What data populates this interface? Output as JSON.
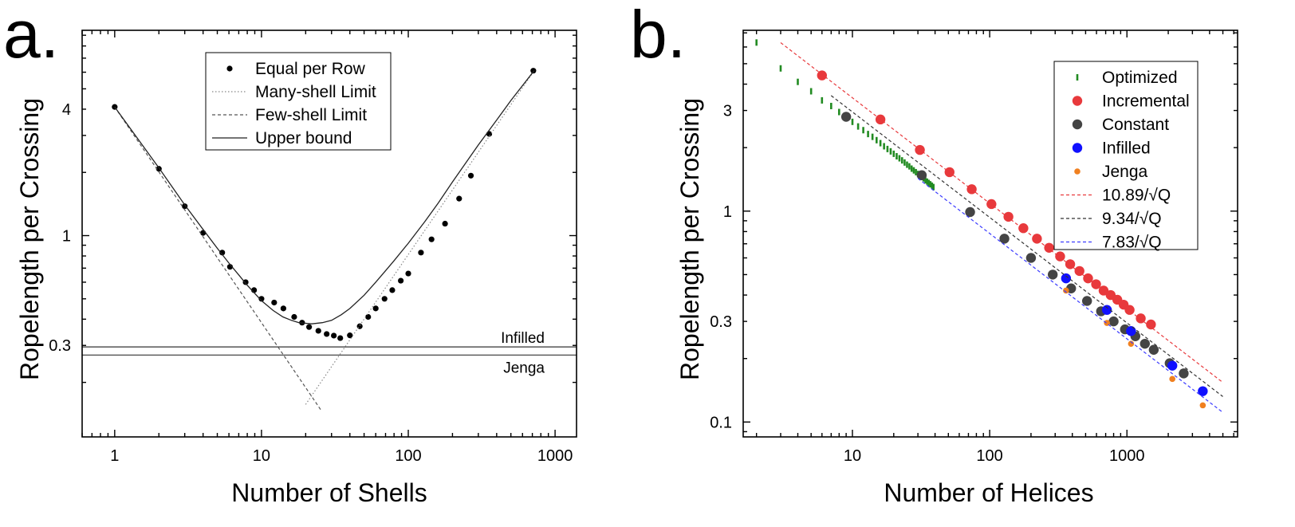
{
  "panels": {
    "a": {
      "label": "a."
    },
    "b": {
      "label": "b."
    }
  },
  "chart_data": [
    {
      "type": "scatter",
      "panel": "a.",
      "xlabel": "Number of Shells",
      "ylabel": "Ropelength per Crossing",
      "xscale": "log",
      "yscale": "log",
      "xlim": [
        0.6,
        1400
      ],
      "ylim": [
        0.11,
        9.5
      ],
      "xticks": [
        {
          "v": 1,
          "label": "1"
        },
        {
          "v": 10,
          "label": "10"
        },
        {
          "v": 100,
          "label": "100"
        },
        {
          "v": 1000,
          "label": "1000"
        }
      ],
      "yticks": [
        {
          "v": 0.3,
          "label": "0.3"
        },
        {
          "v": 1,
          "label": "1"
        },
        {
          "v": 4,
          "label": "4"
        }
      ],
      "legend_position": "top-center",
      "series": [
        {
          "name": "Equal per Row",
          "style": "markers",
          "color": "#000000",
          "points": [
            [
              1,
              4.1
            ],
            [
              2,
              2.08
            ],
            [
              3,
              1.38
            ],
            [
              4,
              1.03
            ],
            [
              5.4,
              0.83
            ],
            [
              6.1,
              0.71
            ],
            [
              7.8,
              0.6
            ],
            [
              8.9,
              0.55
            ],
            [
              10,
              0.5
            ],
            [
              12.2,
              0.48
            ],
            [
              14.1,
              0.45
            ],
            [
              16.7,
              0.41
            ],
            [
              18.9,
              0.385
            ],
            [
              21.1,
              0.367
            ],
            [
              24.4,
              0.352
            ],
            [
              27.8,
              0.34
            ],
            [
              31.1,
              0.334
            ],
            [
              34.4,
              0.325
            ],
            [
              40,
              0.335
            ],
            [
              46.7,
              0.37
            ],
            [
              53.3,
              0.41
            ],
            [
              60,
              0.45
            ],
            [
              68.9,
              0.5
            ],
            [
              77.8,
              0.55
            ],
            [
              88.9,
              0.61
            ],
            [
              100,
              0.66
            ],
            [
              122,
              0.83
            ],
            [
              144,
              0.96
            ],
            [
              178,
              1.14
            ],
            [
              222,
              1.5
            ],
            [
              267,
              1.93
            ],
            [
              356,
              3.05
            ],
            [
              711,
              6.1
            ]
          ]
        },
        {
          "name": "Many-shell Limit",
          "style": "dotted",
          "color": "#888888",
          "points": [
            [
              20,
              0.157
            ],
            [
              722,
              6.12
            ]
          ]
        },
        {
          "name": "Few-shell Limit",
          "style": "dashed",
          "color": "#555555",
          "points": [
            [
              1,
              4.1
            ],
            [
              25.5,
              0.147
            ]
          ]
        },
        {
          "name": "Upper bound",
          "style": "solid",
          "color": "#222222",
          "points": [
            [
              1,
              4.1
            ],
            [
              2,
              2.1
            ],
            [
              3,
              1.4
            ],
            [
              4,
              1.07
            ],
            [
              5,
              0.87
            ],
            [
              6,
              0.74
            ],
            [
              7,
              0.65
            ],
            [
              8,
              0.58
            ],
            [
              10,
              0.49
            ],
            [
              12,
              0.44
            ],
            [
              14,
              0.41
            ],
            [
              16,
              0.395
            ],
            [
              18,
              0.385
            ],
            [
              22,
              0.38
            ],
            [
              26,
              0.385
            ],
            [
              30,
              0.395
            ],
            [
              35,
              0.42
            ],
            [
              40,
              0.45
            ],
            [
              50,
              0.52
            ],
            [
              60,
              0.6
            ],
            [
              70,
              0.68
            ],
            [
              80,
              0.76
            ],
            [
              100,
              0.92
            ],
            [
              130,
              1.17
            ],
            [
              160,
              1.43
            ],
            [
              200,
              1.8
            ],
            [
              300,
              2.7
            ],
            [
              400,
              3.55
            ],
            [
              500,
              4.4
            ],
            [
              722,
              6.12
            ]
          ]
        }
      ],
      "hlines": [
        {
          "y": 0.295,
          "label": "Infilled",
          "color": "#333333"
        },
        {
          "y": 0.27,
          "label": "Jenga",
          "color": "#333333"
        }
      ]
    },
    {
      "type": "scatter",
      "panel": "b.",
      "xlabel": "Number of Helices",
      "ylabel": "Ropelength per Crossing",
      "xscale": "log",
      "yscale": "log",
      "xlim": [
        1.6,
        6400
      ],
      "ylim": [
        0.085,
        7.2
      ],
      "xticks": [
        {
          "v": 10,
          "label": "10"
        },
        {
          "v": 100,
          "label": "100"
        },
        {
          "v": 1000,
          "label": "1000"
        }
      ],
      "yticks": [
        {
          "v": 0.1,
          "label": "0.1"
        },
        {
          "v": 0.3,
          "label": "0.3"
        },
        {
          "v": 1,
          "label": "1"
        },
        {
          "v": 3,
          "label": "3"
        }
      ],
      "legend_position": "top-right",
      "series": [
        {
          "name": "Optimized",
          "style": "dash-markers",
          "color": "#228b22",
          "points": [
            [
              2,
              6.3
            ],
            [
              3,
              4.75
            ],
            [
              4,
              4.1
            ],
            [
              5,
              3.7
            ],
            [
              6,
              3.35
            ],
            [
              7,
              3.15
            ],
            [
              8,
              2.95
            ],
            [
              9,
              2.8
            ],
            [
              10,
              2.65
            ],
            [
              11,
              2.52
            ],
            [
              12,
              2.42
            ],
            [
              13,
              2.32
            ],
            [
              14,
              2.25
            ],
            [
              15,
              2.17
            ],
            [
              16,
              2.1
            ],
            [
              17,
              2.03
            ],
            [
              18,
              1.97
            ],
            [
              19,
              1.92
            ],
            [
              20,
              1.87
            ],
            [
              21,
              1.82
            ],
            [
              22,
              1.78
            ],
            [
              23,
              1.74
            ],
            [
              24,
              1.7
            ],
            [
              25,
              1.66
            ],
            [
              26,
              1.63
            ],
            [
              27,
              1.59
            ],
            [
              28,
              1.56
            ],
            [
              29,
              1.53
            ],
            [
              30,
              1.5
            ],
            [
              31,
              1.48
            ],
            [
              32,
              1.45
            ],
            [
              33,
              1.43
            ],
            [
              34,
              1.4
            ],
            [
              35,
              1.38
            ],
            [
              36,
              1.36
            ],
            [
              37,
              1.34
            ],
            [
              38,
              1.32
            ],
            [
              39,
              1.3
            ]
          ]
        },
        {
          "name": "Incremental",
          "style": "markers",
          "color": "#e8393c",
          "points": [
            [
              6,
              4.4
            ],
            [
              16,
              2.72
            ],
            [
              31,
              1.95
            ],
            [
              51,
              1.53
            ],
            [
              74,
              1.27
            ],
            [
              103,
              1.08
            ],
            [
              137,
              0.94
            ],
            [
              176,
              0.83
            ],
            [
              221,
              0.74
            ],
            [
              271,
              0.67
            ],
            [
              326,
              0.61
            ],
            [
              386,
              0.56
            ],
            [
              451,
              0.52
            ],
            [
              521,
              0.48
            ],
            [
              596,
              0.45
            ],
            [
              676,
              0.42
            ],
            [
              761,
              0.4
            ],
            [
              851,
              0.38
            ],
            [
              946,
              0.36
            ],
            [
              1046,
              0.34
            ],
            [
              1261,
              0.31
            ],
            [
              1496,
              0.29
            ]
          ]
        },
        {
          "name": "Constant",
          "style": "markers",
          "color": "#444444",
          "points": [
            [
              9,
              2.8
            ],
            [
              32,
              1.48
            ],
            [
              72,
              0.99
            ],
            [
              128,
              0.74
            ],
            [
              200,
              0.6
            ],
            [
              288,
              0.5
            ],
            [
              392,
              0.43
            ],
            [
              512,
              0.375
            ],
            [
              648,
              0.335
            ],
            [
              800,
              0.3
            ],
            [
              968,
              0.275
            ],
            [
              1152,
              0.255
            ],
            [
              1352,
              0.235
            ],
            [
              1568,
              0.22
            ],
            [
              2048,
              0.19
            ],
            [
              2592,
              0.17
            ]
          ]
        },
        {
          "name": "Infilled",
          "style": "markers",
          "color": "#1010ff",
          "points": [
            [
              360,
              0.48
            ],
            [
              715,
              0.34
            ],
            [
              1071,
              0.27
            ],
            [
              2142,
              0.185
            ],
            [
              3570,
              0.14
            ]
          ]
        },
        {
          "name": "Jenga",
          "style": "small-markers",
          "color": "#f08020",
          "points": [
            [
              360,
              0.42
            ],
            [
              715,
              0.295
            ],
            [
              1071,
              0.235
            ],
            [
              2142,
              0.16
            ],
            [
              3570,
              0.12
            ]
          ]
        },
        {
          "name": "10.89/√Q",
          "style": "dashed",
          "color": "#e8393c",
          "points": [
            [
              3,
              6.29
            ],
            [
              5000,
              0.154
            ]
          ]
        },
        {
          "name": "9.34/√Q",
          "style": "dashed",
          "color": "#333333",
          "points": [
            [
              7,
              3.53
            ],
            [
              5000,
              0.132
            ]
          ]
        },
        {
          "name": "7.83/√Q",
          "style": "dashed",
          "color": "#3a3aff",
          "points": [
            [
              30,
              1.43
            ],
            [
              5000,
              0.111
            ]
          ]
        }
      ]
    }
  ]
}
